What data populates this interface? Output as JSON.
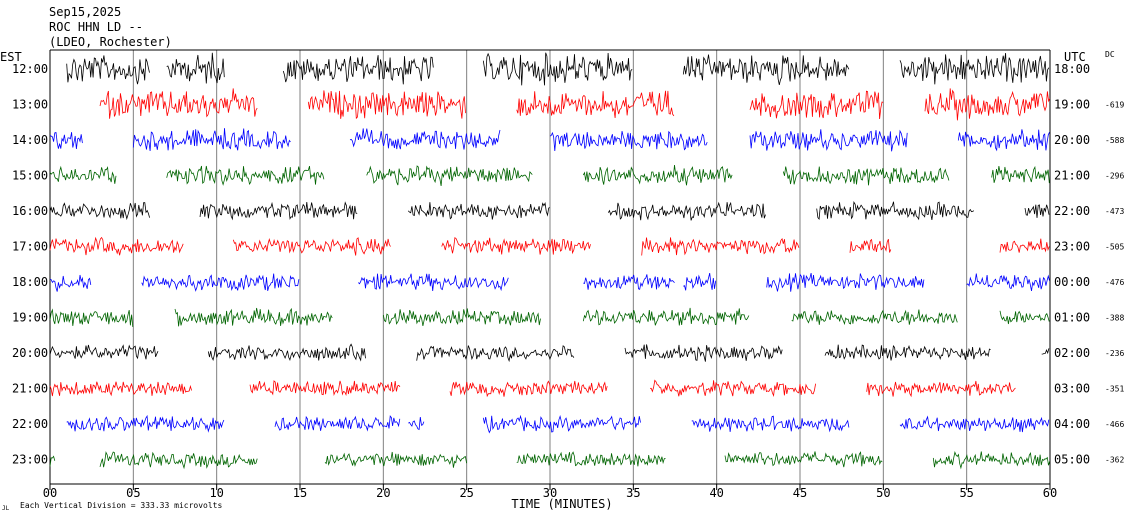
{
  "header": {
    "date": "Sep15,2025",
    "station": "ROC HHN LD --",
    "network": "(LDEO, Rochester)"
  },
  "left_axis_label": "EST",
  "right_axis_label": "UTC",
  "dc_label": "DC",
  "footer_note": "Each Vertical Division =  333.33 microvolts",
  "corner_mark": "JL",
  "colors": {
    "black": "#000000",
    "red": "#ff0000",
    "blue": "#0000ff",
    "green": "#006400",
    "grid": "#808080"
  },
  "chart_data": {
    "type": "line",
    "title": "Sep15,2025",
    "xlabel": "TIME (MINUTES)",
    "ylabel": "",
    "xlim": [
      0,
      60
    ],
    "x_ticks": [
      "00",
      "05",
      "10",
      "15",
      "20",
      "25",
      "30",
      "35",
      "40",
      "45",
      "50",
      "55",
      "60"
    ],
    "series": [
      {
        "est": "12:00",
        "utc": "18:00",
        "dc": "",
        "color": "black",
        "amp": 1.6,
        "segments": [
          [
            1,
            6
          ],
          [
            7,
            10.5
          ],
          [
            14,
            23
          ],
          [
            26,
            35
          ],
          [
            38,
            48
          ],
          [
            51,
            60
          ]
        ]
      },
      {
        "est": "13:00",
        "utc": "19:00",
        "dc": "-619",
        "color": "red",
        "amp": 1.5,
        "segments": [
          [
            3,
            12.5
          ],
          [
            15.5,
            25
          ],
          [
            28,
            37.5
          ],
          [
            42,
            50
          ],
          [
            52.5,
            60
          ]
        ]
      },
      {
        "est": "14:00",
        "utc": "20:00",
        "dc": "-588",
        "color": "blue",
        "amp": 1.1,
        "segments": [
          [
            0,
            2
          ],
          [
            5,
            14.5
          ],
          [
            18,
            27
          ],
          [
            30,
            39.5
          ],
          [
            42,
            51.5
          ],
          [
            54.5,
            60
          ]
        ]
      },
      {
        "est": "15:00",
        "utc": "21:00",
        "dc": "-296",
        "color": "green",
        "amp": 1.0,
        "segments": [
          [
            0,
            4
          ],
          [
            7,
            16.5
          ],
          [
            19,
            29
          ],
          [
            32,
            41
          ],
          [
            44,
            54
          ],
          [
            56.5,
            60
          ]
        ]
      },
      {
        "est": "16:00",
        "utc": "22:00",
        "dc": "-473",
        "color": "black",
        "amp": 0.9,
        "segments": [
          [
            0,
            6
          ],
          [
            9,
            18.5
          ],
          [
            21.5,
            30
          ],
          [
            33.5,
            43
          ],
          [
            46,
            55.5
          ],
          [
            58.5,
            60
          ]
        ]
      },
      {
        "est": "17:00",
        "utc": "23:00",
        "dc": "-505",
        "color": "red",
        "amp": 0.9,
        "segments": [
          [
            0,
            8
          ],
          [
            11,
            20.5
          ],
          [
            23.5,
            32.5
          ],
          [
            35.5,
            45
          ],
          [
            48,
            50.5
          ],
          [
            57,
            60
          ]
        ]
      },
      {
        "est": "18:00",
        "utc": "00:00",
        "dc": "-476",
        "color": "blue",
        "amp": 0.9,
        "segments": [
          [
            0,
            2.5
          ],
          [
            5.5,
            15
          ],
          [
            18.5,
            27.5
          ],
          [
            32,
            37.5
          ],
          [
            38,
            40
          ],
          [
            43,
            52.5
          ],
          [
            55,
            60
          ]
        ]
      },
      {
        "est": "19:00",
        "utc": "01:00",
        "dc": "-388",
        "color": "green",
        "amp": 0.9,
        "segments": [
          [
            0,
            5
          ],
          [
            7.5,
            17
          ],
          [
            20,
            29.5
          ],
          [
            32,
            42
          ],
          [
            44.5,
            54.5
          ],
          [
            57,
            60
          ]
        ]
      },
      {
        "est": "20:00",
        "utc": "02:00",
        "dc": "-236",
        "color": "black",
        "amp": 0.8,
        "segments": [
          [
            0,
            6.5
          ],
          [
            9.5,
            19
          ],
          [
            22,
            31.5
          ],
          [
            34.5,
            44
          ],
          [
            46.5,
            56.5
          ],
          [
            59.5,
            60
          ]
        ]
      },
      {
        "est": "21:00",
        "utc": "03:00",
        "dc": "-351",
        "color": "red",
        "amp": 0.8,
        "segments": [
          [
            0,
            8.5
          ],
          [
            12,
            21
          ],
          [
            24,
            33.5
          ],
          [
            36,
            46
          ],
          [
            49,
            58
          ]
        ]
      },
      {
        "est": "22:00",
        "utc": "04:00",
        "dc": "-466",
        "color": "blue",
        "amp": 0.8,
        "segments": [
          [
            1,
            10.5
          ],
          [
            13.5,
            21
          ],
          [
            21.5,
            22.5
          ],
          [
            26,
            35.5
          ],
          [
            38.5,
            48
          ],
          [
            51,
            60
          ]
        ]
      },
      {
        "est": "23:00",
        "utc": "05:00",
        "dc": "-362",
        "color": "green",
        "amp": 0.8,
        "segments": [
          [
            0,
            0.3
          ],
          [
            3,
            12.5
          ],
          [
            16.5,
            25
          ],
          [
            28,
            37
          ],
          [
            40.5,
            50
          ],
          [
            53,
            60
          ]
        ]
      }
    ]
  }
}
